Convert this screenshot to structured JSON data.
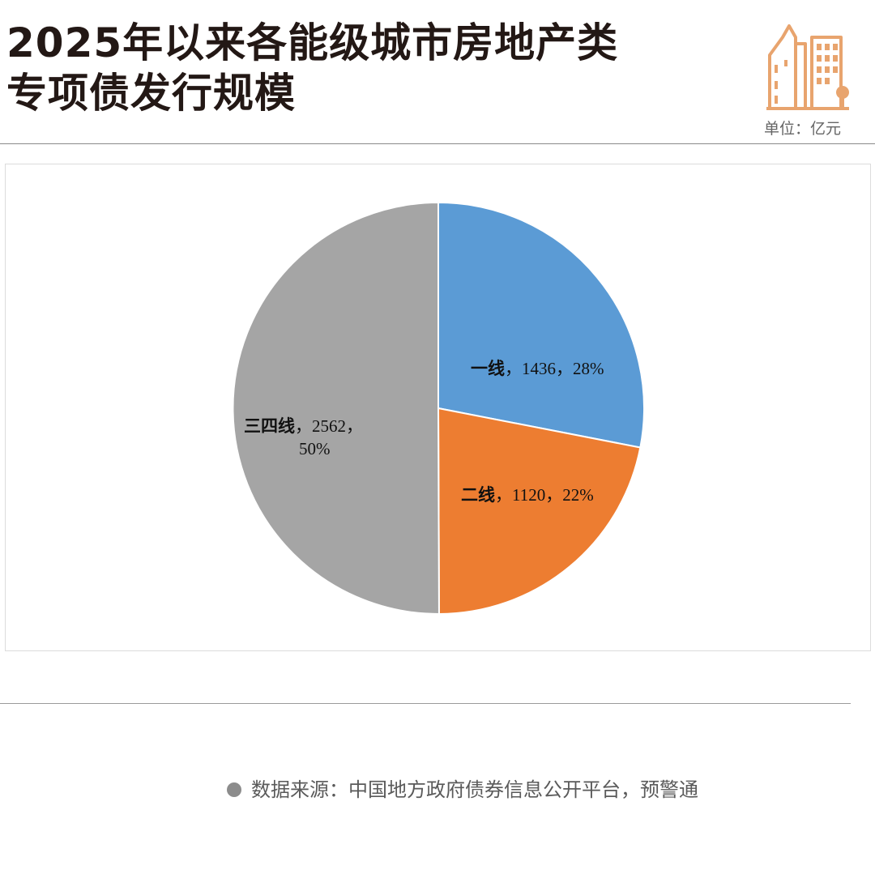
{
  "header": {
    "title_line1": "2025年以来各能级城市房地产类",
    "title_line2": "专项债发行规模",
    "unit_label": "单位：亿元"
  },
  "chart_data": {
    "type": "pie",
    "unit": "亿元",
    "slices": [
      {
        "name": "一线",
        "value": 1436,
        "percent": "28%",
        "label_text": "，1436，28%",
        "color": "#5B9BD5"
      },
      {
        "name": "二线",
        "value": 1120,
        "percent": "22%",
        "label_text": "，1120，22%",
        "color": "#ED7D31"
      },
      {
        "name": "三四线",
        "value": 2562,
        "percent": "50%",
        "label_text": "，2562，",
        "label_text2": "50%",
        "color": "#A5A5A5"
      }
    ]
  },
  "footer": {
    "source": "数据来源：中国地方政府债券信息公开平台，预警通"
  },
  "colors": {
    "logo": "#E8A46E",
    "rule": "#8a8a8a"
  }
}
